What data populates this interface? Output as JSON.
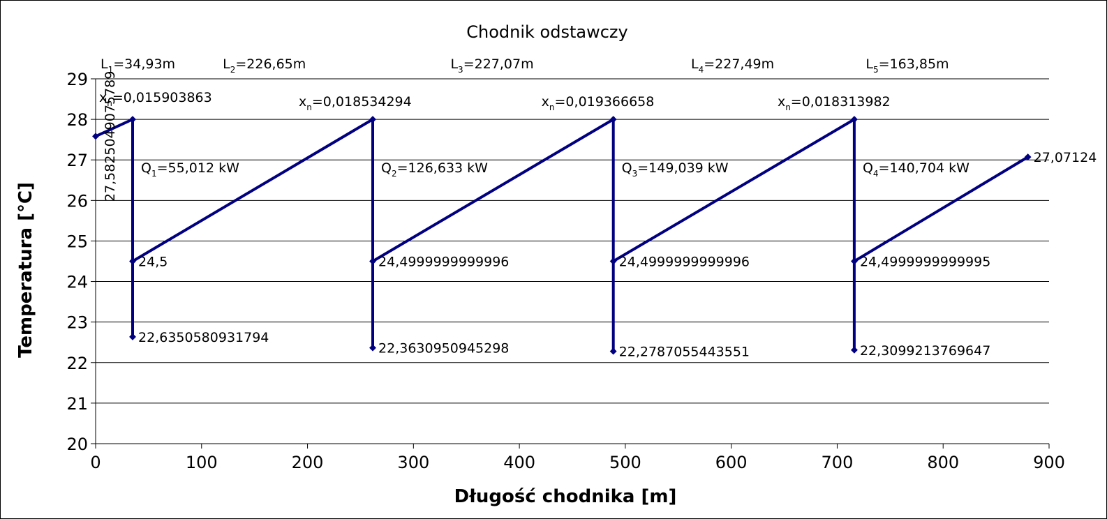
{
  "chart_data": {
    "type": "line",
    "title": "Chodnik odstawczy",
    "xlabel": "Długość chodnika [m]",
    "ylabel": "Temperatura [°C]",
    "xlim": [
      0,
      900
    ],
    "ylim": [
      20,
      29
    ],
    "x_ticks": [
      "0",
      "100",
      "200",
      "300",
      "400",
      "500",
      "600",
      "700",
      "800",
      "900"
    ],
    "y_ticks": [
      "20",
      "21",
      "22",
      "23",
      "24",
      "25",
      "26",
      "27",
      "28",
      "29"
    ],
    "grid": "horizontal",
    "legend": "none",
    "series_color": "#000080",
    "points": [
      {
        "x": 0,
        "y": 27.5825,
        "label": "27,5825049075789"
      },
      {
        "x": 34.93,
        "y": 28,
        "label": ""
      },
      {
        "x": 34.93,
        "y": 22.635,
        "label": "22,6350580931794"
      },
      {
        "x": 34.93,
        "y": 24.5,
        "label": "24,5"
      },
      {
        "x": 261.58,
        "y": 28,
        "label": ""
      },
      {
        "x": 261.58,
        "y": 22.363,
        "label": "22,3630950945298"
      },
      {
        "x": 261.58,
        "y": 24.5,
        "label": "24,4999999999996"
      },
      {
        "x": 488.65,
        "y": 28,
        "label": ""
      },
      {
        "x": 488.65,
        "y": 22.279,
        "label": "22,2787055443551"
      },
      {
        "x": 488.65,
        "y": 24.5,
        "label": "24,4999999999996"
      },
      {
        "x": 716.14,
        "y": 28,
        "label": ""
      },
      {
        "x": 716.14,
        "y": 22.31,
        "label": "22,3099213769647"
      },
      {
        "x": 716.14,
        "y": 24.5,
        "label": "24,4999999999995"
      },
      {
        "x": 879.99,
        "y": 27.0712,
        "label": "27,07124"
      }
    ],
    "segment_labels": [
      {
        "main": "L",
        "sub": "1",
        "rest": "=34,93m"
      },
      {
        "main": "L",
        "sub": "2",
        "rest": "=226,65m"
      },
      {
        "main": "L",
        "sub": "3",
        "rest": "=227,07m"
      },
      {
        "main": "L",
        "sub": "4",
        "rest": "=227,49m"
      },
      {
        "main": "L",
        "sub": "5",
        "rest": "=163,85m"
      }
    ],
    "xn_labels": [
      {
        "main": "x",
        "sub": "n",
        "rest": "=0,015903863"
      },
      {
        "main": "x",
        "sub": "n",
        "rest": "=0,018534294"
      },
      {
        "main": "x",
        "sub": "n",
        "rest": "=0,019366658"
      },
      {
        "main": "x",
        "sub": "n",
        "rest": "=0,018313982"
      }
    ],
    "q_labels": [
      {
        "main": "Q",
        "sub": "1",
        "rest": "=55,012 kW"
      },
      {
        "main": "Q",
        "sub": "2",
        "rest": "=126,633 kW"
      },
      {
        "main": "Q",
        "sub": "3",
        "rest": "=149,039 kW"
      },
      {
        "main": "Q",
        "sub": "4",
        "rest": "=140,704 kW"
      }
    ]
  }
}
